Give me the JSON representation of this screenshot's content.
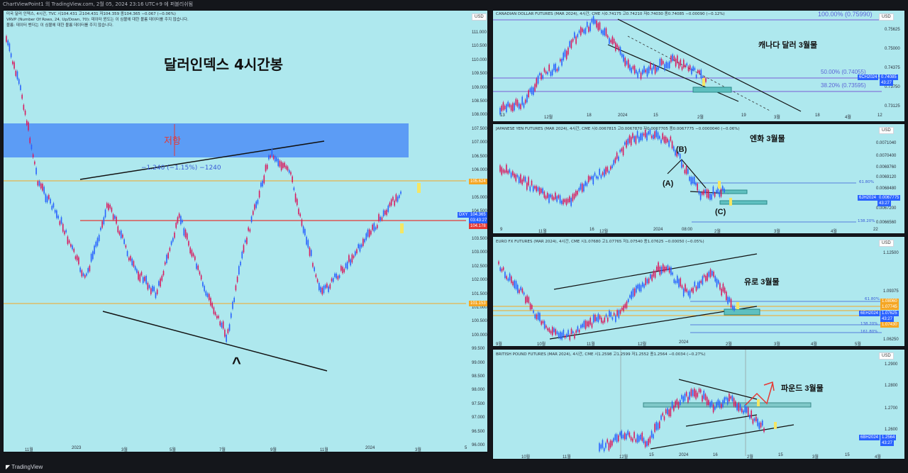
{
  "window": {
    "titlebar": "ChartViewPoint1 의 TradingView.com, 2월 05, 2024 23:16 UTC+9 에 퍼블리쉬됨",
    "footer": "TradingView"
  },
  "main": {
    "header_line1": "미국 달러 인덱스, 4시간, TVC  시104.431  고104.431  저104.359  종104.365  −0.067 (−0.06%)",
    "header_line2": "VRVP (Number Of Rows, 24, Up/Down, 70): 데이터 윈도는 이 심볼에 대한 볼륨 데이터를 주지 않습니다.",
    "header_line3": "볼륨: 데이터 벤더는 이 심볼에 대한 볼륨 데이터를 주지 않습니다.",
    "title": "달러인덱스 4시간봉",
    "resist_label": "저항",
    "measure_label": "−1.240 (−1.15%) −1240",
    "currency": "USD",
    "y_ticks": [
      "111.000",
      "110.500",
      "110.000",
      "109.500",
      "109.000",
      "108.500",
      "108.000",
      "107.500",
      "107.000",
      "106.500",
      "106.000",
      "105.500",
      "105.000",
      "104.500",
      "104.000",
      "103.500",
      "103.000",
      "102.500",
      "102.000",
      "101.500",
      "101.000",
      "100.500",
      "100.000",
      "99.500",
      "99.000",
      "98.500",
      "98.000",
      "97.500",
      "97.000",
      "96.500",
      "96.000"
    ],
    "x_ticks": [
      "11월",
      "2023",
      "3월",
      "5월",
      "7월",
      "9월",
      "11월",
      "2024",
      "3월",
      "5"
    ],
    "tag_symbol": "DXY",
    "tag_price": "104.365",
    "tag_time": "03:43:27",
    "tag_red": "104.178",
    "tag_orange1": "105.624",
    "tag_orange2": "101.153"
  },
  "cad": {
    "header": "CANADIAN DOLLAR FUTURES (MAR 2024), 4시간, CME  시0.74175  고0.74210  저0.74030  종0.74085  −0.00090 (−0.12%)",
    "title": "캐나다 달러 3월물",
    "currency": "USD",
    "fib": [
      "100.00% (0.75990)",
      "50.00% (0.74055)",
      "38.20% (0.73595)"
    ],
    "y_ticks": [
      "0.75625",
      "0.75000",
      "0.74375",
      "0.73750",
      "0.73125"
    ],
    "x_ticks": [
      "13",
      "12월",
      "18",
      "2024",
      "15",
      "2월",
      "19",
      "3월",
      "18",
      "4월",
      "12"
    ],
    "tag_symbol": "6CH2024",
    "tag_price": "0.74085",
    "tag_time": "43:27"
  },
  "jpy": {
    "header": "JAPANESE YEN FUTURES (MAR 2024), 4시간, CME  시0.0067815  고0.0067870  저0.0067705  종0.0067775  −0.0000040 (−0.06%)",
    "title": "엔화 3월물",
    "currency": "USD",
    "labels": [
      "(A)",
      "(B)",
      "(C)"
    ],
    "fib": [
      "61.80%",
      "138.20%"
    ],
    "y_ticks": [
      "0.0071040",
      "0.0070400",
      "0.0069760",
      "0.0069120",
      "0.0068480",
      "0.0067200",
      "0.0066560"
    ],
    "x_ticks": [
      "9",
      "11월",
      "16",
      "12월",
      "2024",
      "08:00",
      "2월",
      "3월",
      "4월",
      "22"
    ],
    "tag_symbol": "6JH2024",
    "tag_price": "0.0067775",
    "tag_time": "43:27"
  },
  "eur": {
    "header": "EURO FX FUTURES (MAR 2024), 4시간, CME  시1.07680  고1.07765  저1.07540  종1.07625  −0.00050 (−0.05%)",
    "title": "유로  3월물",
    "currency": "USD",
    "fib": [
      "61.80%",
      "138.20%",
      "161.80%"
    ],
    "y_ticks": [
      "1.12500",
      "1.09375",
      "1.06250"
    ],
    "x_ticks": [
      "9월",
      "10월",
      "11월",
      "12월",
      "2024",
      "2월",
      "3월",
      "4월",
      "5월"
    ],
    "tag_symbol": "6EH2024",
    "tag_price": "1.07625",
    "tag_time": "43:27",
    "tag_o1": "1.08060",
    "tag_o2": "1.07745",
    "tag_o3": "1.07430"
  },
  "gbp": {
    "header": "BRITISH POUND FUTURES (MAR 2024), 4시간, CME  시1.2598  고1.2599  저1.2552  종1.2564  −0.0034 (−0.27%)",
    "title": "파운드  3월물",
    "currency": "USD",
    "y_ticks": [
      "1.2900",
      "1.2800",
      "1.2700",
      "1.2600"
    ],
    "x_ticks": [
      "10월",
      "11월",
      "12월",
      "15",
      "2024",
      "16",
      "2월",
      "15",
      "3월",
      "15",
      "4월"
    ],
    "tag_symbol": "6BH2024",
    "tag_price": "1.2564",
    "tag_time": "43:27"
  },
  "colors": {
    "bg": "#aee8ee",
    "blue_zone": "#5c9cf5",
    "orange": "#f5a623",
    "red": "#e53935",
    "fib": "#7b5cd6",
    "teal": "#5fc0c0",
    "yellow": "#f5e663"
  }
}
